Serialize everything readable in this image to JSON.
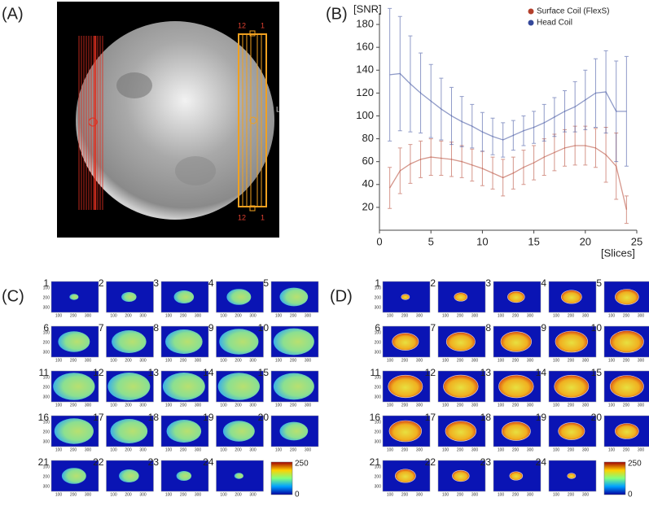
{
  "panels": {
    "a": "(A)",
    "b": "(B)",
    "c": "(C)",
    "d": "(D)"
  },
  "panel_a": {
    "top_left": "12",
    "top_right": "1",
    "bottom_left": "12",
    "bottom_right": "1",
    "side": "L"
  },
  "chart_data": {
    "type": "line",
    "y_label": "[SNR]",
    "x_label": "[Slices]",
    "x": [
      1,
      2,
      3,
      4,
      5,
      6,
      7,
      8,
      9,
      10,
      11,
      12,
      13,
      14,
      15,
      16,
      17,
      18,
      19,
      20,
      21,
      22,
      23,
      24
    ],
    "xlim": [
      0,
      25
    ],
    "ylim": [
      0,
      190
    ],
    "xticks": [
      0,
      5,
      10,
      15,
      20,
      25
    ],
    "yticks": [
      20,
      40,
      60,
      80,
      100,
      120,
      140,
      160,
      180
    ],
    "series": [
      {
        "name": "Surface Coil (FlexS)",
        "color": "#b3402c",
        "values": [
          37,
          52,
          58,
          62,
          64,
          63,
          62,
          60,
          57,
          54,
          50,
          46,
          50,
          55,
          59,
          64,
          68,
          72,
          74,
          74,
          72,
          66,
          56,
          18
        ],
        "errors": [
          18,
          20,
          17,
          16,
          16,
          15,
          15,
          14,
          14,
          15,
          14,
          16,
          14,
          15,
          15,
          16,
          16,
          16,
          17,
          17,
          17,
          24,
          29,
          12
        ]
      },
      {
        "name": "Head Coil",
        "color": "#34489a",
        "values": [
          136,
          137,
          128,
          120,
          113,
          106,
          100,
          95,
          91,
          86,
          82,
          79,
          83,
          87,
          90,
          94,
          99,
          104,
          108,
          114,
          120,
          121,
          104,
          104
        ],
        "errors": [
          58,
          50,
          42,
          35,
          32,
          27,
          25,
          22,
          19,
          17,
          16,
          15,
          13,
          13,
          14,
          16,
          17,
          18,
          22,
          26,
          30,
          36,
          44,
          48
        ]
      }
    ]
  },
  "thumbnails": {
    "slices": [
      1,
      2,
      3,
      4,
      5,
      6,
      7,
      8,
      9,
      10,
      11,
      12,
      13,
      14,
      15,
      16,
      17,
      18,
      19,
      20,
      21,
      22,
      23,
      24
    ],
    "ticks": [
      100,
      200,
      300
    ]
  },
  "colorbar": {
    "max": 250,
    "min": 0
  }
}
